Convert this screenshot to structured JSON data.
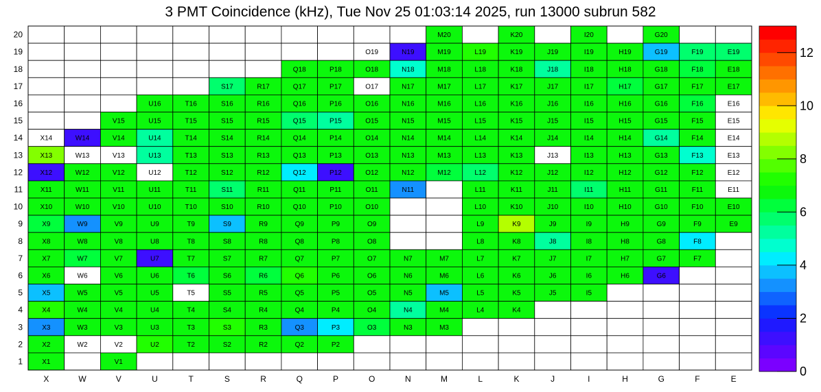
{
  "title": "3 PMT Coincidence (kHz), Tue Nov 25 01:03:14 2025, run 13000 subrun 582",
  "chart_data": {
    "type": "heatmap",
    "columns": [
      "X",
      "W",
      "V",
      "U",
      "T",
      "S",
      "R",
      "Q",
      "P",
      "O",
      "N",
      "M",
      "L",
      "K",
      "J",
      "I",
      "H",
      "G",
      "F",
      "E"
    ],
    "rows": [
      20,
      19,
      18,
      17,
      16,
      15,
      14,
      13,
      12,
      11,
      10,
      9,
      8,
      7,
      6,
      5,
      4,
      3,
      2,
      1
    ],
    "zlim": [
      0,
      13
    ],
    "z_ticks": [
      0,
      2,
      4,
      6,
      8,
      10,
      12
    ],
    "values": [
      [
        null,
        null,
        null,
        null,
        null,
        null,
        null,
        null,
        null,
        null,
        null,
        6.5,
        null,
        6.5,
        null,
        6.5,
        null,
        6.5,
        null,
        null
      ],
      [
        null,
        null,
        null,
        null,
        null,
        null,
        null,
        null,
        null,
        0,
        1,
        6.5,
        7,
        6.5,
        6.5,
        6.5,
        6.5,
        3.5,
        5.5,
        5.5
      ],
      [
        null,
        null,
        null,
        null,
        null,
        null,
        null,
        6.5,
        6.5,
        6.5,
        4.5,
        6.5,
        6.5,
        6.5,
        5,
        6.5,
        6.5,
        6.5,
        6,
        6.5
      ],
      [
        null,
        null,
        null,
        null,
        null,
        5.5,
        6.5,
        6.5,
        6.5,
        0,
        6.5,
        6.5,
        6.5,
        6.5,
        6.5,
        6.5,
        6,
        6.5,
        6.5,
        6.5
      ],
      [
        null,
        null,
        null,
        6.5,
        6.5,
        6.5,
        6.5,
        6.5,
        6.5,
        6.5,
        6.5,
        6.5,
        6.5,
        6.5,
        6.5,
        6.5,
        6.5,
        6.5,
        6,
        0
      ],
      [
        null,
        null,
        6.5,
        6.5,
        6.5,
        6.5,
        6.5,
        5.5,
        5,
        6.5,
        6.5,
        6.5,
        6.5,
        6.5,
        6.5,
        6.5,
        6.5,
        6.5,
        6.5,
        0
      ],
      [
        0,
        1,
        6.5,
        5,
        6.5,
        6.5,
        6.5,
        6.5,
        6.5,
        6.5,
        6.5,
        6.5,
        6.5,
        6.5,
        6.5,
        6.5,
        6.5,
        5,
        6.5,
        0
      ],
      [
        8,
        0,
        0,
        5,
        6.5,
        6.5,
        6.5,
        6.5,
        6.5,
        6.5,
        6.5,
        6.5,
        6.5,
        6.5,
        0,
        6.5,
        6.5,
        6.5,
        4.5,
        0
      ],
      [
        1,
        6.5,
        6.5,
        0,
        6.5,
        6.5,
        6.5,
        4,
        1,
        6.5,
        6.5,
        6,
        5.5,
        6.5,
        6.5,
        6.5,
        6.5,
        6.5,
        6.5,
        0
      ],
      [
        6.5,
        6.5,
        6.5,
        6.5,
        6.5,
        5.5,
        6.5,
        6.5,
        6.5,
        6.5,
        3,
        null,
        6.5,
        6.5,
        6.5,
        5.5,
        6.5,
        6.5,
        6.5,
        0
      ],
      [
        6.5,
        6.5,
        6.5,
        6.5,
        6.5,
        6.5,
        6.5,
        6.5,
        6.5,
        6.5,
        null,
        null,
        6.5,
        6.5,
        6.5,
        6.5,
        6.5,
        6.5,
        6.5,
        6.5
      ],
      [
        6,
        3,
        6.5,
        6.5,
        6.5,
        3.5,
        6.5,
        6.5,
        6.5,
        6.5,
        null,
        null,
        6.5,
        8.5,
        6.5,
        6.5,
        6.5,
        6.5,
        6.5,
        6.5
      ],
      [
        6.5,
        6.5,
        6.5,
        6.5,
        6.5,
        6.5,
        6.5,
        6.5,
        6.5,
        6.5,
        null,
        null,
        6.5,
        6.5,
        5,
        6.5,
        6.5,
        6.5,
        4,
        null
      ],
      [
        6.5,
        6,
        6.5,
        1,
        6.5,
        6.5,
        6.5,
        6.5,
        6.5,
        6.5,
        6.5,
        6.5,
        6.5,
        6.5,
        6.5,
        6.5,
        6.5,
        6.5,
        6.5,
        null
      ],
      [
        6.5,
        0,
        6.5,
        6.5,
        6,
        6.5,
        6,
        7,
        6.5,
        6.5,
        6.5,
        6.5,
        6.5,
        6.5,
        6.5,
        6.5,
        6.5,
        1,
        null,
        null
      ],
      [
        3.5,
        6.5,
        6.5,
        6.5,
        0,
        6.5,
        6.5,
        6.5,
        6.5,
        6.5,
        6.5,
        3.5,
        6.5,
        6.5,
        6.5,
        6.5,
        null,
        null,
        null,
        null
      ],
      [
        7,
        6.5,
        6.5,
        6.5,
        6.5,
        6.5,
        6.5,
        6.5,
        6.5,
        6.5,
        5,
        6.5,
        6.5,
        6.5,
        null,
        null,
        null,
        null,
        null,
        null
      ],
      [
        3,
        6.5,
        6.5,
        6.5,
        6.5,
        7,
        6.5,
        3,
        4,
        6,
        6.5,
        6.5,
        null,
        null,
        null,
        null,
        null,
        null,
        null,
        null
      ],
      [
        6.5,
        0,
        0,
        7,
        6.5,
        6.5,
        6.5,
        6.5,
        6.5,
        null,
        null,
        null,
        null,
        null,
        null,
        null,
        null,
        null,
        null,
        null
      ],
      [
        6.5,
        null,
        6.5,
        null,
        null,
        null,
        null,
        null,
        null,
        null,
        null,
        null,
        null,
        null,
        null,
        null,
        null,
        null,
        null,
        null
      ]
    ],
    "palette": [
      "#7b00ff",
      "#5b06ff",
      "#3d0fff",
      "#1f19ff",
      "#0a34ff",
      "#0f63ff",
      "#1491ff",
      "#0cc0ff",
      "#00edff",
      "#00ffcf",
      "#00ff9e",
      "#00ff6d",
      "#00ff3c",
      "#0cf80c",
      "#21ff00",
      "#52ff00",
      "#83ff00",
      "#b4ff00",
      "#e5ff00",
      "#ffe600",
      "#ffbb00",
      "#ff9600",
      "#ff7000",
      "#ff4a00",
      "#ff2400",
      "#ff0000"
    ]
  }
}
